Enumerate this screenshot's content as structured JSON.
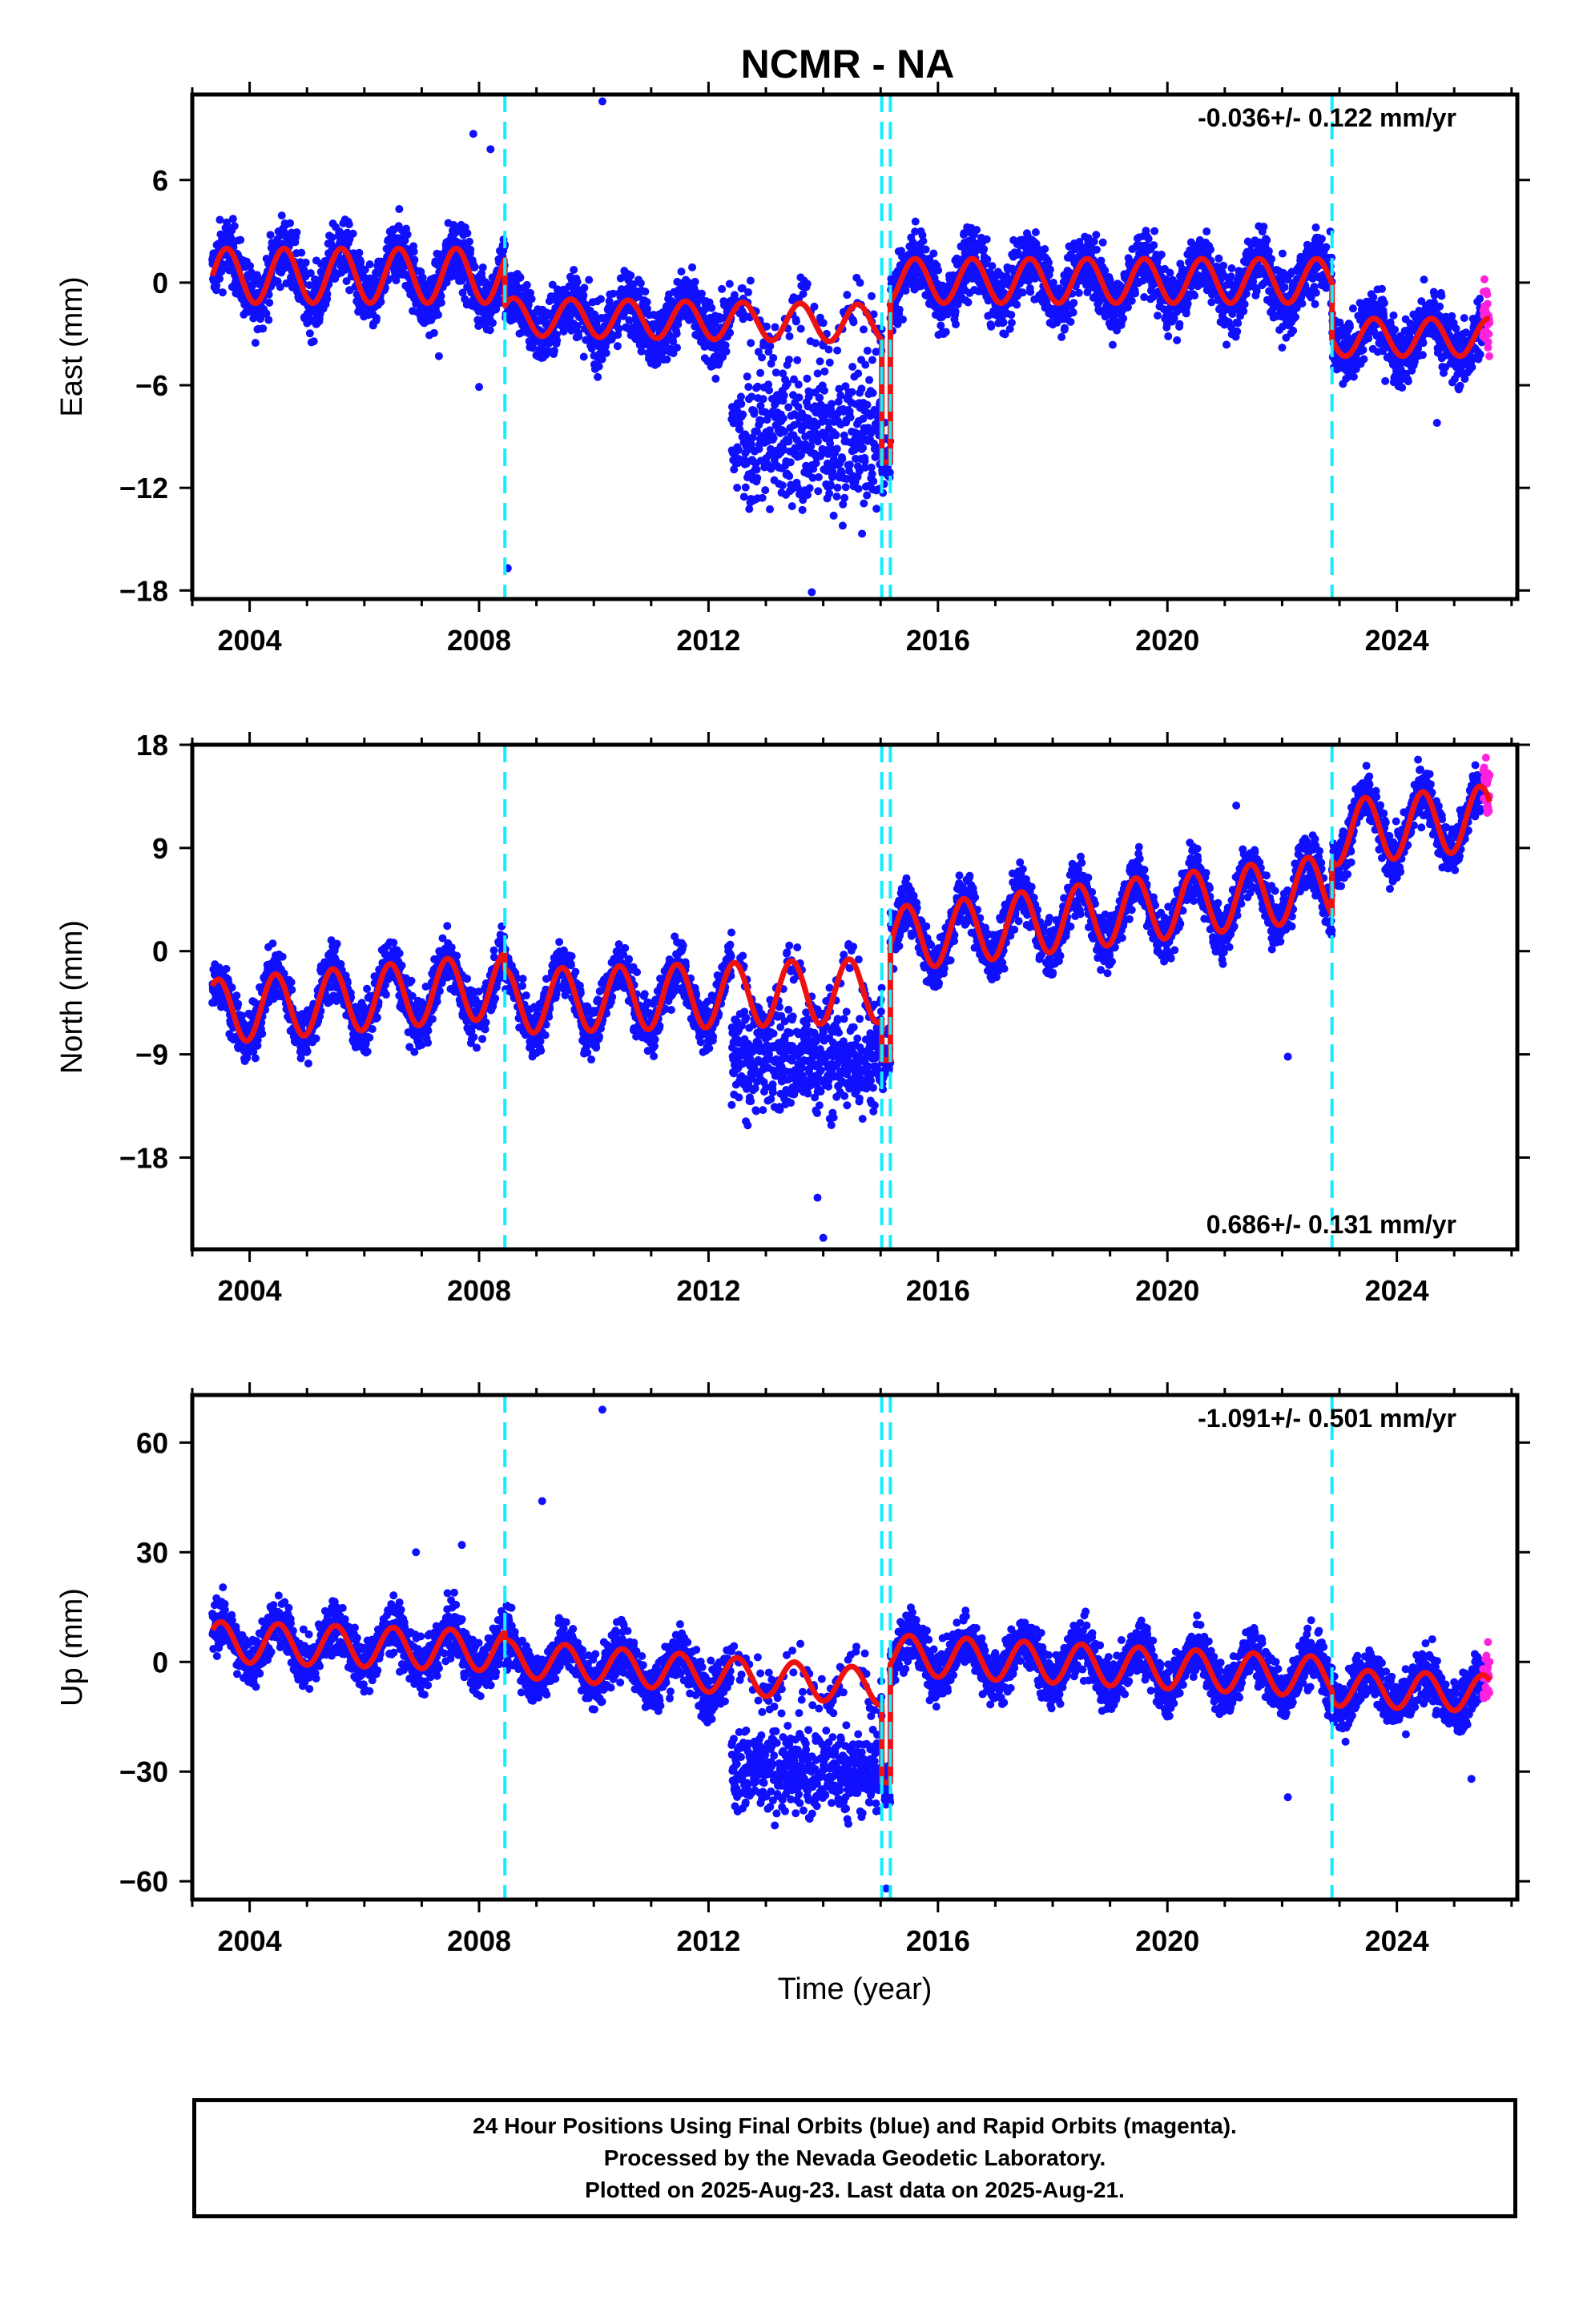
{
  "page": {
    "title": "NCMR - NA",
    "caption": [
      "24 Hour Positions Using Final Orbits (blue) and Rapid Orbits (magenta).",
      "Processed by the Nevada Geodetic Laboratory.",
      "Plotted on 2025-Aug-23. Last data on 2025-Aug-21."
    ]
  },
  "colors": {
    "final_points": "#1010ff",
    "rapid_points": "#ff22dd",
    "model_line": "#ee1111",
    "step_lines": "#11eeff",
    "frame": "#000000"
  },
  "chart_data": [
    {
      "type": "scatter",
      "title": "NCMR - NA",
      "xlabel": "",
      "ylabel": "East (mm)",
      "xlim": [
        2003.0,
        2026.1
      ],
      "ylim": [
        -18.5,
        11.0
      ],
      "xticks": [
        2004,
        2008,
        2012,
        2016,
        2020,
        2024
      ],
      "yticks": [
        -18,
        -12,
        -6,
        0,
        6
      ],
      "rate_label": "-0.036+/- 0.122 mm/yr",
      "rate_position": "top-right",
      "step_epochs": [
        2008.45,
        2015.02,
        2015.17,
        2022.87
      ],
      "rapid_start": 2025.5,
      "series": [
        {
          "name": "Final Orbits",
          "color": "blue"
        },
        {
          "name": "Rapid Orbits",
          "color": "magenta"
        },
        {
          "name": "Model",
          "color": "red"
        }
      ],
      "model_segments": [
        {
          "x": [
            2003.35,
            2008.45
          ],
          "offset": 0.4,
          "trend": 0.0,
          "amplitude": 1.6,
          "phase": 0.35
        },
        {
          "x": [
            2008.45,
            2015.02
          ],
          "offset": -2.0,
          "trend": -0.06,
          "amplitude": 1.1,
          "phase": 0.35
        },
        {
          "x": [
            2015.02,
            2015.17
          ],
          "offset": -10.5,
          "trend": 0.0,
          "amplitude": 0.0,
          "phase": 0.0
        },
        {
          "x": [
            2015.17,
            2022.87
          ],
          "offset": 0.1,
          "trend": 0.0,
          "amplitude": 1.3,
          "phase": 0.35
        },
        {
          "x": [
            2022.87,
            2025.62
          ],
          "offset": -3.2,
          "trend": 0.0,
          "amplitude": 1.1,
          "phase": 0.35
        }
      ],
      "scatter_spread": 1.3,
      "cloud_segments": [
        {
          "x": [
            2012.4,
            2015.0
          ],
          "center": -9.0,
          "spread": 3.0
        }
      ],
      "outliers": [
        [
          2010.15,
          10.6
        ],
        [
          2007.9,
          8.7
        ],
        [
          2008.2,
          7.8
        ],
        [
          2008.0,
          -6.1
        ],
        [
          2007.3,
          -4.3
        ],
        [
          2008.5,
          -16.7
        ],
        [
          2013.8,
          -18.1
        ],
        [
          2022.0,
          -3.8
        ],
        [
          2024.7,
          -8.2
        ]
      ]
    },
    {
      "type": "scatter",
      "xlabel": "",
      "ylabel": "North (mm)",
      "xlim": [
        2003.0,
        2026.1
      ],
      "ylim": [
        -26.0,
        18.0
      ],
      "xticks": [
        2004,
        2008,
        2012,
        2016,
        2020,
        2024
      ],
      "yticks": [
        -18,
        -9,
        0,
        9,
        18
      ],
      "rate_label": "0.686+/- 0.131 mm/yr",
      "rate_position": "bottom-right",
      "step_epochs": [
        2008.45,
        2015.02,
        2015.17,
        2022.87
      ],
      "rapid_start": 2025.5,
      "series": [
        {
          "name": "Final Orbits",
          "color": "blue"
        },
        {
          "name": "Rapid Orbits",
          "color": "magenta"
        },
        {
          "name": "Model",
          "color": "red"
        }
      ],
      "model_segments": [
        {
          "x": [
            2003.35,
            2008.45
          ],
          "offset": -5.3,
          "trend": 0.45,
          "amplitude": 2.8,
          "phase": 0.2
        },
        {
          "x": [
            2008.45,
            2015.02
          ],
          "offset": -4.4,
          "trend": 0.15,
          "amplitude": 2.8,
          "phase": 0.2
        },
        {
          "x": [
            2015.02,
            2015.17
          ],
          "offset": -9.5,
          "trend": 0.0,
          "amplitude": 0.0,
          "phase": 0.0
        },
        {
          "x": [
            2015.17,
            2022.87
          ],
          "offset": 1.0,
          "trend": 0.6,
          "amplitude": 2.8,
          "phase": 0.2
        },
        {
          "x": [
            2022.87,
            2025.62
          ],
          "offset": 10.3,
          "trend": 0.5,
          "amplitude": 2.8,
          "phase": 0.2
        }
      ],
      "scatter_spread": 1.6,
      "cloud_segments": [
        {
          "x": [
            2012.4,
            2015.0
          ],
          "center": -9.5,
          "spread": 3.2
        }
      ],
      "outliers": [
        [
          2013.9,
          -21.5
        ],
        [
          2014.0,
          -25.0
        ],
        [
          2022.1,
          -9.2
        ],
        [
          2021.2,
          12.7
        ]
      ]
    },
    {
      "type": "scatter",
      "xlabel": "Time (year)",
      "ylabel": "Up (mm)",
      "xlim": [
        2003.0,
        2026.1
      ],
      "ylim": [
        -65.0,
        73.0
      ],
      "xticks": [
        2004,
        2008,
        2012,
        2016,
        2020,
        2024
      ],
      "yticks": [
        -60,
        -30,
        0,
        30,
        60
      ],
      "rate_label": "-1.091+/- 0.501 mm/yr",
      "rate_position": "top-right",
      "step_epochs": [
        2008.45,
        2015.02,
        2015.17,
        2022.87
      ],
      "rapid_start": 2025.5,
      "series": [
        {
          "name": "Final Orbits",
          "color": "blue"
        },
        {
          "name": "Rapid Orbits",
          "color": "magenta"
        },
        {
          "name": "Model",
          "color": "red"
        }
      ],
      "model_segments": [
        {
          "x": [
            2003.35,
            2008.45
          ],
          "offset": 5.5,
          "trend": -0.5,
          "amplitude": 5.5,
          "phase": 0.25
        },
        {
          "x": [
            2008.45,
            2015.02
          ],
          "offset": 1.0,
          "trend": -1.2,
          "amplitude": 5.0,
          "phase": 0.25
        },
        {
          "x": [
            2015.02,
            2015.17
          ],
          "offset": -33.0,
          "trend": 0.0,
          "amplitude": 0.0,
          "phase": 0.0
        },
        {
          "x": [
            2015.17,
            2022.87
          ],
          "offset": 2.0,
          "trend": -0.8,
          "amplitude": 5.5,
          "phase": 0.25
        },
        {
          "x": [
            2022.87,
            2025.62
          ],
          "offset": -7.0,
          "trend": -0.6,
          "amplitude": 5.0,
          "phase": 0.25
        }
      ],
      "scatter_spread": 5.0,
      "cloud_segments": [
        {
          "x": [
            2012.4,
            2015.0
          ],
          "center": -30.0,
          "spread": 8.0
        }
      ],
      "outliers": [
        [
          2010.15,
          69.0
        ],
        [
          2009.1,
          44.0
        ],
        [
          2007.7,
          32.0
        ],
        [
          2006.9,
          30.0
        ],
        [
          2022.1,
          -37.0
        ],
        [
          2025.3,
          -32.0
        ],
        [
          2015.1,
          -62.0
        ]
      ]
    }
  ]
}
